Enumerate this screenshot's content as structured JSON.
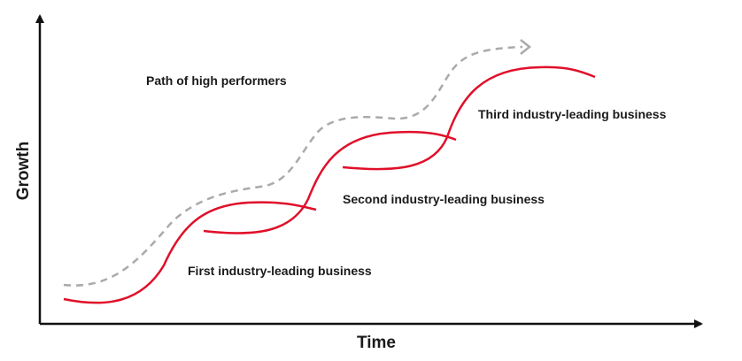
{
  "axes": {
    "x_title": "Time",
    "y_title": "Growth"
  },
  "labels": {
    "high_performers": "Path of high performers",
    "first_business": "First industry-leading business",
    "second_business": "Second industry-leading business",
    "third_business": "Third industry-leading business"
  },
  "colors": {
    "curve": "#e0102a",
    "path": "#aaaaaa",
    "axis": "#111111",
    "text": "#1a1a1a"
  },
  "icons": {
    "path_arrow": "arrow-right-icon",
    "x_axis_arrow": "arrow-right-icon",
    "y_axis_arrow": "arrow-up-icon"
  }
}
